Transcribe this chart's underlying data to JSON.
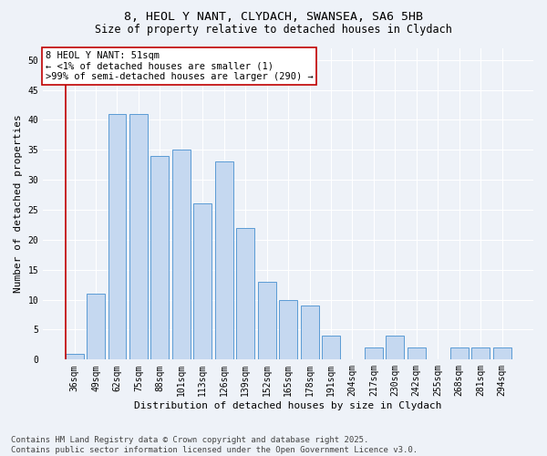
{
  "title_line1": "8, HEOL Y NANT, CLYDACH, SWANSEA, SA6 5HB",
  "title_line2": "Size of property relative to detached houses in Clydach",
  "xlabel": "Distribution of detached houses by size in Clydach",
  "ylabel": "Number of detached properties",
  "categories": [
    "36sqm",
    "49sqm",
    "62sqm",
    "75sqm",
    "88sqm",
    "101sqm",
    "113sqm",
    "126sqm",
    "139sqm",
    "152sqm",
    "165sqm",
    "178sqm",
    "191sqm",
    "204sqm",
    "217sqm",
    "230sqm",
    "242sqm",
    "255sqm",
    "268sqm",
    "281sqm",
    "294sqm"
  ],
  "values": [
    1,
    11,
    41,
    41,
    34,
    35,
    26,
    33,
    22,
    13,
    10,
    9,
    4,
    0,
    2,
    4,
    2,
    0,
    2,
    2,
    2
  ],
  "bar_color": "#c5d8f0",
  "bar_edge_color": "#5b9bd5",
  "highlight_line_color": "#c00000",
  "annotation_text": "8 HEOL Y NANT: 51sqm\n← <1% of detached houses are smaller (1)\n>99% of semi-detached houses are larger (290) →",
  "annotation_box_color": "#ffffff",
  "annotation_box_edge": "#c00000",
  "ylim": [
    0,
    52
  ],
  "yticks": [
    0,
    5,
    10,
    15,
    20,
    25,
    30,
    35,
    40,
    45,
    50
  ],
  "bg_color": "#eef2f8",
  "plot_bg_color": "#eef2f8",
  "grid_color": "#ffffff",
  "footnote": "Contains HM Land Registry data © Crown copyright and database right 2025.\nContains public sector information licensed under the Open Government Licence v3.0.",
  "title_fontsize": 9.5,
  "subtitle_fontsize": 8.5,
  "axis_label_fontsize": 8,
  "tick_fontsize": 7,
  "annotation_fontsize": 7.5,
  "footnote_fontsize": 6.5
}
